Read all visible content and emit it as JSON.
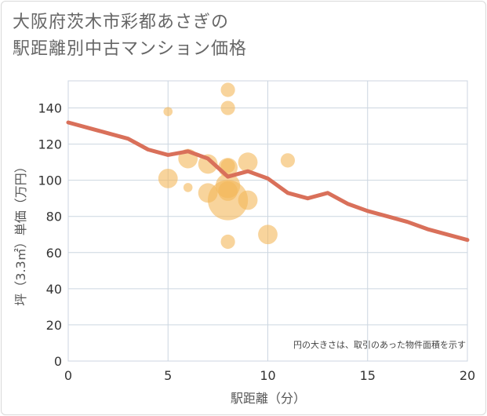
{
  "chart_data": {
    "type": "scatter",
    "title_lines": [
      "大阪府茨木市彩都あさぎの",
      "駅距離別中古マンション価格"
    ],
    "xlabel": "駅距離（分）",
    "ylabel": "坪（3.3㎡）単価（万円）",
    "xlim": [
      0,
      20
    ],
    "ylim": [
      0,
      155
    ],
    "xticks": [
      0,
      5,
      10,
      15,
      20
    ],
    "yticks": [
      0,
      20,
      40,
      60,
      80,
      100,
      120,
      140
    ],
    "note": "円の大きさは、取引のあった物件面積を示す",
    "colors": {
      "bubble": "#f3b85a",
      "line": "#d9705a",
      "grid": "#ccd6e0"
    },
    "bubbles": [
      {
        "x": 5,
        "y": 138,
        "size": 1
      },
      {
        "x": 5,
        "y": 101,
        "size": 3
      },
      {
        "x": 6,
        "y": 112,
        "size": 3
      },
      {
        "x": 6,
        "y": 96,
        "size": 1
      },
      {
        "x": 7,
        "y": 109,
        "size": 3
      },
      {
        "x": 7,
        "y": 93,
        "size": 3
      },
      {
        "x": 8,
        "y": 150,
        "size": 2
      },
      {
        "x": 8,
        "y": 140,
        "size": 2
      },
      {
        "x": 8,
        "y": 108,
        "size": 2
      },
      {
        "x": 8,
        "y": 107,
        "size": 3
      },
      {
        "x": 8,
        "y": 97,
        "size": 4
      },
      {
        "x": 8,
        "y": 94,
        "size": 3
      },
      {
        "x": 8,
        "y": 89,
        "size": 7
      },
      {
        "x": 8,
        "y": 66,
        "size": 2
      },
      {
        "x": 9,
        "y": 110,
        "size": 3
      },
      {
        "x": 9,
        "y": 89,
        "size": 3
      },
      {
        "x": 10,
        "y": 70,
        "size": 3
      },
      {
        "x": 11,
        "y": 111,
        "size": 2
      }
    ],
    "series": [
      {
        "name": "trend",
        "x": [
          0,
          1,
          2,
          3,
          4,
          5,
          6,
          7,
          8,
          9,
          10,
          11,
          12,
          13,
          14,
          15,
          16,
          17,
          18,
          19,
          20
        ],
        "y": [
          132,
          129,
          126,
          123,
          117,
          114,
          116,
          112,
          102,
          105,
          101,
          93,
          90,
          93,
          87,
          83,
          80,
          77,
          73,
          70,
          67
        ]
      }
    ]
  }
}
